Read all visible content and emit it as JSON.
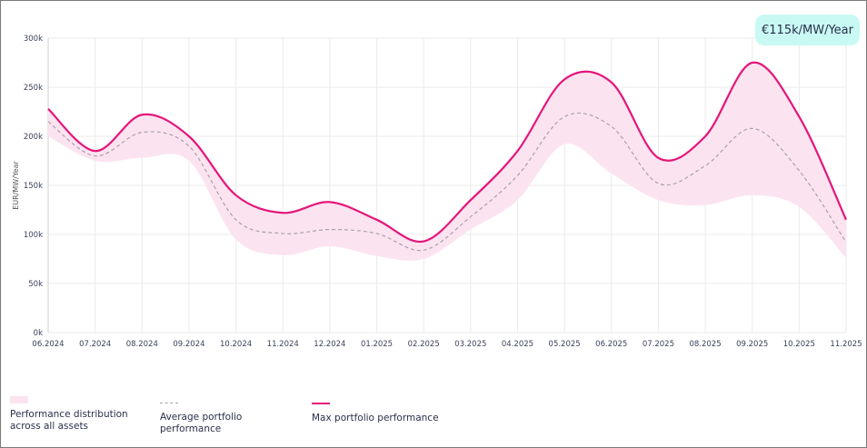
{
  "badge": "€115k/MW/Year",
  "chart_data": {
    "type": "area",
    "ylabel": "EUR/MW/Year",
    "xlabel": "",
    "ylim": [
      0,
      300000
    ],
    "yticks": [
      "0k",
      "50k",
      "100k",
      "150k",
      "200k",
      "250k",
      "300k"
    ],
    "grid": true,
    "legend_position": "bottom",
    "categories": [
      "06.2024",
      "07.2024",
      "08.2024",
      "09.2024",
      "10.2024",
      "11.2024",
      "12.2024",
      "01.2025",
      "02.2025",
      "03.2025",
      "04.2025",
      "05.2025",
      "06.2025",
      "07.2025",
      "08.2025",
      "09.2025",
      "10.2025",
      "11.2025"
    ],
    "series": [
      {
        "name": "Performance distribution across all assets",
        "kind": "band",
        "low": [
          200000,
          175000,
          178000,
          175000,
          95000,
          79000,
          88000,
          78000,
          75000,
          105000,
          135000,
          192000,
          162000,
          135000,
          130000,
          140000,
          128000,
          76000
        ],
        "high": [
          228000,
          185000,
          222000,
          200000,
          140000,
          122000,
          133000,
          115000,
          93000,
          135000,
          185000,
          258000,
          255000,
          178000,
          200000,
          275000,
          220000,
          115000
        ]
      },
      {
        "name": "Average portfolio performance",
        "kind": "dashed-line",
        "values": [
          215000,
          180000,
          204000,
          190000,
          115000,
          101000,
          105000,
          101000,
          84000,
          118000,
          160000,
          220000,
          210000,
          152000,
          170000,
          208000,
          165000,
          92000
        ]
      },
      {
        "name": "Max portfolio performance",
        "kind": "line",
        "values": [
          228000,
          185000,
          222000,
          200000,
          140000,
          122000,
          133000,
          115000,
          93000,
          135000,
          185000,
          258000,
          255000,
          178000,
          200000,
          275000,
          220000,
          115000
        ]
      }
    ],
    "colors": {
      "max": "#e5157a",
      "band": "#fbe4f0",
      "avg": "#a8a0ab",
      "grid": "#ebebeb"
    }
  },
  "legend": [
    {
      "label_line1": "Performance distribution",
      "label_line2": "across all assets"
    },
    {
      "label_line1": "Average portfolio",
      "label_line2": "performance"
    },
    {
      "label_line1": "Max portfolio performance",
      "label_line2": ""
    }
  ]
}
